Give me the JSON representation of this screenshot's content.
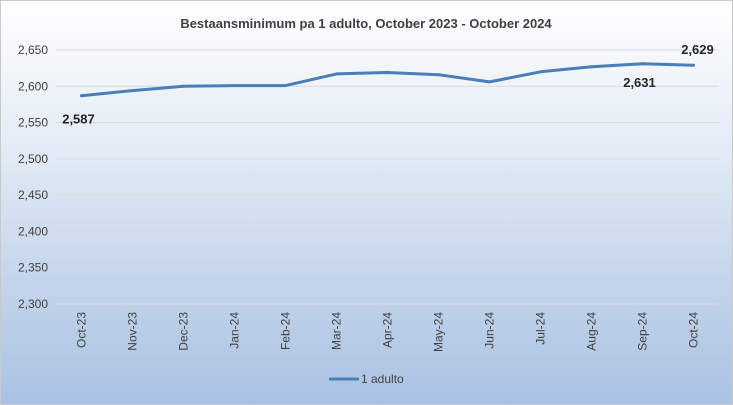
{
  "chart_data": {
    "type": "line",
    "title": "Bestaansminimum pa 1 adulto, October 2023 - October 2024",
    "categories": [
      "Oct-23",
      "Nov-23",
      "Dec-23",
      "Jan-24",
      "Feb-24",
      "Mar-24",
      "Apr-24",
      "May-24",
      "Jun-24",
      "Jul-24",
      "Aug-24",
      "Sep-24",
      "Oct-24"
    ],
    "series": [
      {
        "name": "1 adulto",
        "color": "#4a7ebb",
        "values": [
          2587,
          2594,
          2600,
          2601,
          2601,
          2617,
          2619,
          2616,
          2606,
          2620,
          2627,
          2631,
          2629
        ]
      }
    ],
    "yticks": [
      "2,300",
      "2,350",
      "2,400",
      "2,450",
      "2,500",
      "2,550",
      "2,600",
      "2,650"
    ],
    "ylim": [
      2300,
      2650
    ],
    "grid": true,
    "legend_position": "bottom",
    "data_labels": [
      {
        "index": 0,
        "text": "2,587"
      },
      {
        "index": 11,
        "text": "2,631"
      },
      {
        "index": 12,
        "text": "2,629"
      }
    ]
  }
}
